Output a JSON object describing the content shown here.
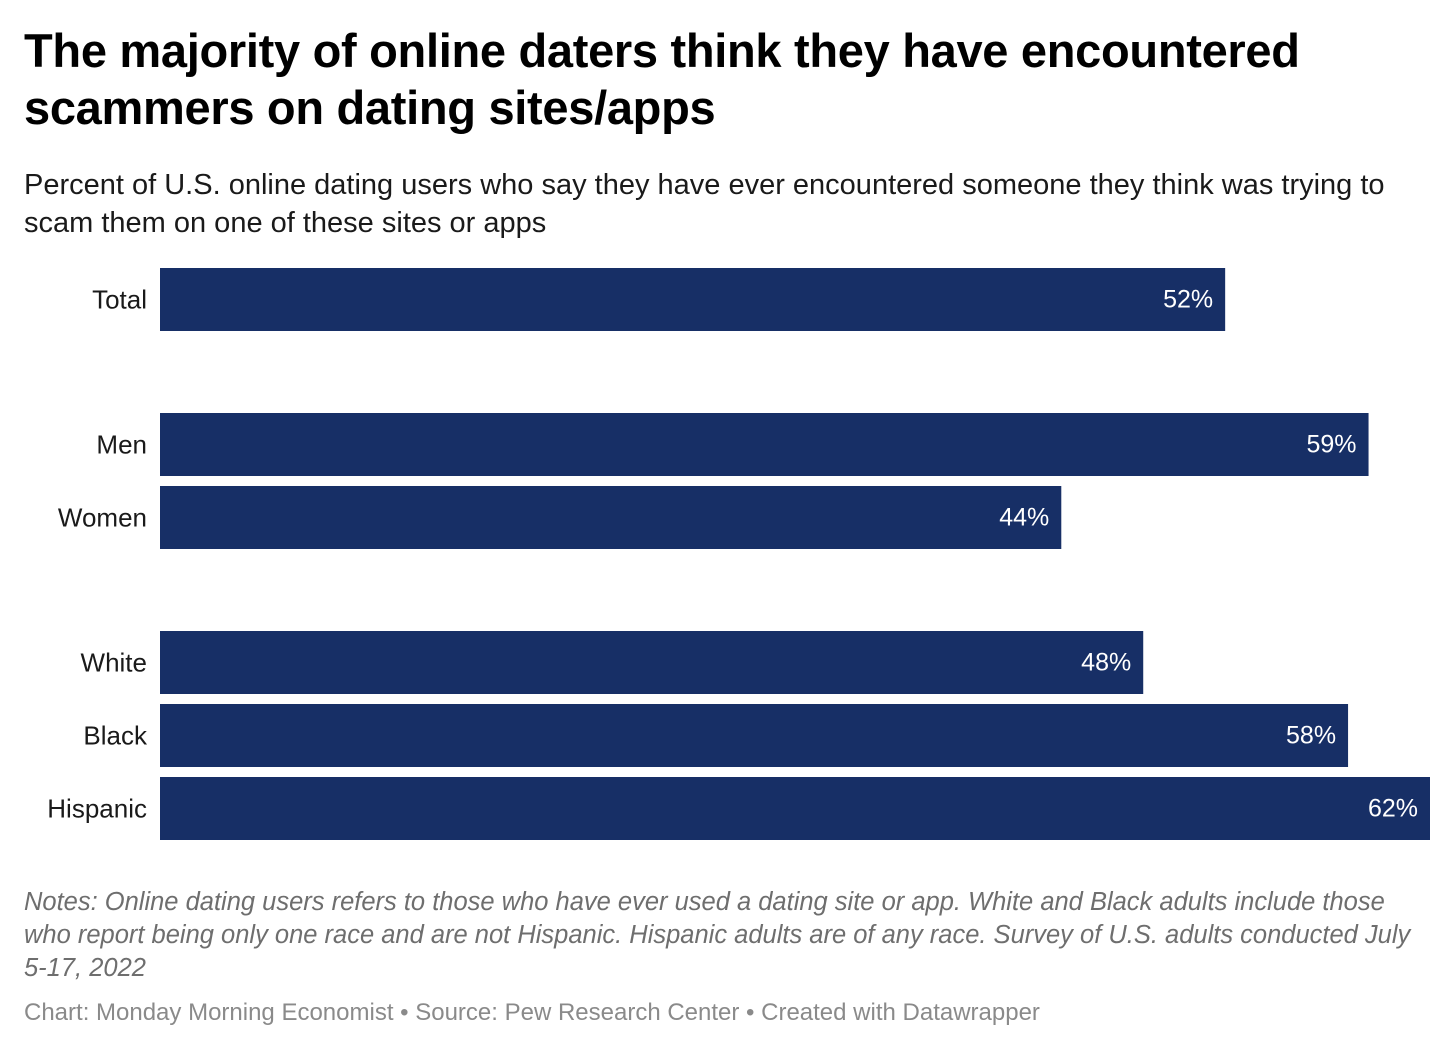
{
  "header": {
    "title": "The majority of online daters think they have encountered scammers on dating sites/apps",
    "subtitle": "Percent of U.S. online dating users who say they have ever encountered someone they think was trying to scam them on one of these sites or apps"
  },
  "chart_data": {
    "type": "bar",
    "orientation": "horizontal",
    "categories": [
      "Total",
      "Men",
      "Women",
      "White",
      "Black",
      "Hispanic"
    ],
    "groups": [
      [
        "Total"
      ],
      [
        "Men",
        "Women"
      ],
      [
        "White",
        "Black",
        "Hispanic"
      ]
    ],
    "values": [
      52,
      59,
      44,
      48,
      58,
      62
    ],
    "value_labels": [
      "52%",
      "59%",
      "44%",
      "48%",
      "58%",
      "62%"
    ],
    "unit": "%",
    "xlim": [
      0,
      62
    ],
    "grid": false,
    "bar_color": "#172f66",
    "label_color": "#ffffff"
  },
  "footer": {
    "notes": "Notes: Online dating users refers to those who have ever used a dating site or app. White and Black adults include those who report being only one race and are not Hispanic. Hispanic adults are of any race. Survey of U.S. adults conducted July 5-17, 2022",
    "credit": "Chart: Monday Morning Economist • Source: Pew Research Center • Created with Datawrapper"
  }
}
